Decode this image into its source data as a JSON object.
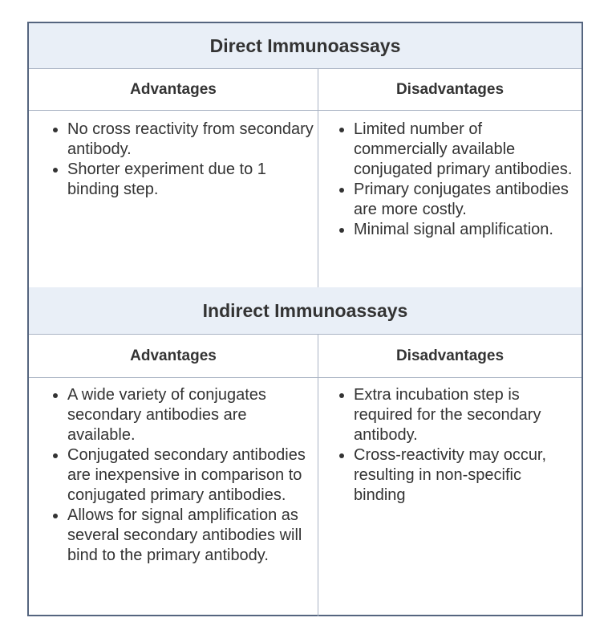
{
  "direct": {
    "title": "Direct Immunoassays",
    "advantages_header": "Advantages",
    "disadvantages_header": "Disadvantages",
    "advantages": [
      "No cross reactivity from secondary antibody.",
      "Shorter experiment due to 1 binding step."
    ],
    "disadvantages": [
      "Limited number of commercially available conjugated primary antibodies.",
      "Primary conjugates antibodies are more costly.",
      "Minimal signal amplification."
    ]
  },
  "indirect": {
    "title": "Indirect Immunoassays",
    "advantages_header": "Advantages",
    "disadvantages_header": "Disadvantages",
    "advantages": [
      "A wide variety of conjugates secondary antibodies are available.",
      "Conjugated secondary antibodies are inexpensive in comparison to conjugated primary antibodies.",
      "Allows for signal amplification as several secondary antibodies will bind to the primary antibody."
    ],
    "disadvantages": [
      "Extra incubation step is required for the secondary antibody.",
      "Cross-reactivity may occur, resulting in non-specific binding"
    ]
  }
}
